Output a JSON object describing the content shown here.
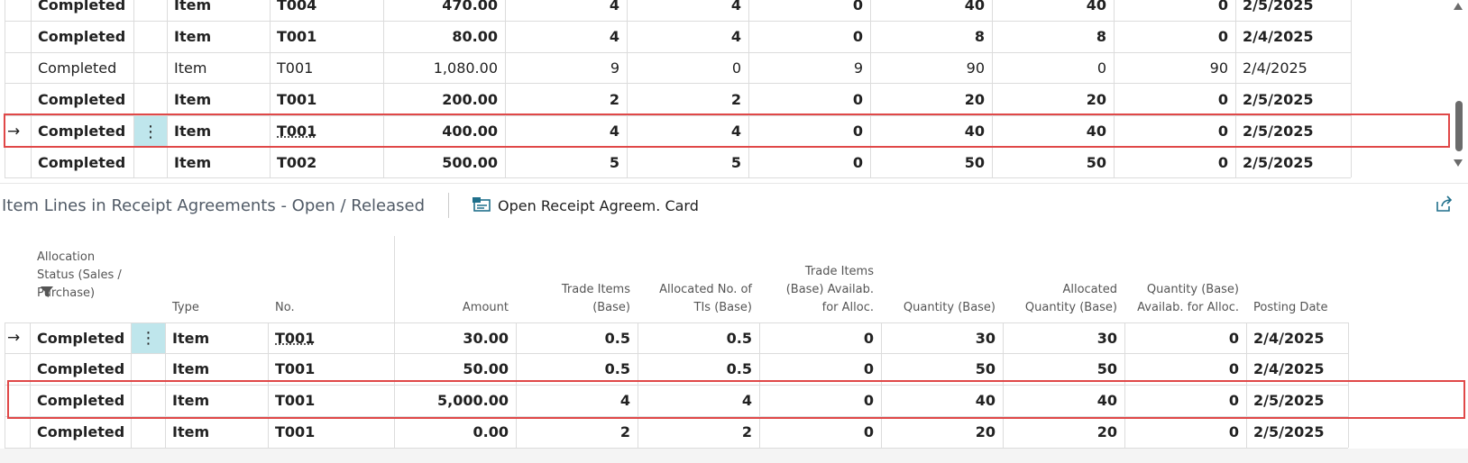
{
  "top_table": {
    "selected_row": 4,
    "rows": [
      {
        "bold": true,
        "cells": [
          "Completed",
          "Item",
          "T004",
          "470.00",
          "4",
          "4",
          "0",
          "40",
          "40",
          "0",
          "2/5/2025"
        ]
      },
      {
        "bold": true,
        "cells": [
          "Completed",
          "Item",
          "T001",
          "80.00",
          "4",
          "4",
          "0",
          "8",
          "8",
          "0",
          "2/4/2025"
        ]
      },
      {
        "bold": false,
        "cells": [
          "Completed",
          "Item",
          "T001",
          "1,080.00",
          "9",
          "0",
          "9",
          "90",
          "0",
          "90",
          "2/4/2025"
        ]
      },
      {
        "bold": true,
        "cells": [
          "Completed",
          "Item",
          "T001",
          "200.00",
          "2",
          "2",
          "0",
          "20",
          "20",
          "0",
          "2/5/2025"
        ]
      },
      {
        "bold": true,
        "cells": [
          "Completed",
          "Item",
          "T001",
          "400.00",
          "4",
          "4",
          "0",
          "40",
          "40",
          "0",
          "2/5/2025"
        ]
      },
      {
        "bold": true,
        "cells": [
          "Completed",
          "Item",
          "T002",
          "500.00",
          "5",
          "5",
          "0",
          "50",
          "50",
          "0",
          "2/5/2025"
        ]
      }
    ]
  },
  "section": {
    "title": "Item Lines in Receipt Agreements - Open / Released",
    "action": "Open Receipt Agreem. Card"
  },
  "bottom_table": {
    "selected_row": 0,
    "headers": [
      "Allocation Status (Sales / Purchase)",
      "Type",
      "No.",
      "Amount",
      "Trade Items (Base)",
      "Allocated No. of TIs (Base)",
      "Trade Items (Base) Availab. for Alloc.",
      "Quantity (Base)",
      "Allocated Quantity (Base)",
      "Quantity (Base) Availab. for Alloc.",
      "Posting Date"
    ],
    "rows": [
      {
        "bold": true,
        "cells": [
          "Completed",
          "Item",
          "T001",
          "30.00",
          "0.5",
          "0.5",
          "0",
          "30",
          "30",
          "0",
          "2/4/2025"
        ]
      },
      {
        "bold": true,
        "cells": [
          "Completed",
          "Item",
          "T001",
          "50.00",
          "0.5",
          "0.5",
          "0",
          "50",
          "50",
          "0",
          "2/4/2025"
        ]
      },
      {
        "bold": true,
        "cells": [
          "Completed",
          "Item",
          "T001",
          "5,000.00",
          "4",
          "4",
          "0",
          "40",
          "40",
          "0",
          "2/5/2025"
        ]
      },
      {
        "bold": true,
        "cells": [
          "Completed",
          "Item",
          "T001",
          "0.00",
          "2",
          "2",
          "0",
          "20",
          "20",
          "0",
          "2/5/2025"
        ]
      }
    ]
  }
}
